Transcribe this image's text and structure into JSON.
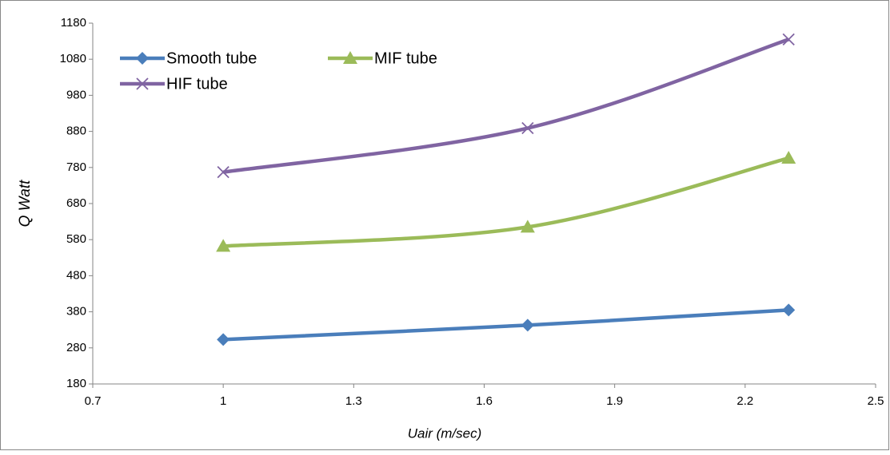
{
  "chart_data": {
    "type": "line",
    "x_label": "Uair  (m/sec)",
    "y_label": "Q  Watt",
    "x": [
      1,
      1.7,
      2.3
    ],
    "series": [
      {
        "name": "Smooth tube",
        "color": "#4a7ebb",
        "marker": "diamond",
        "values": [
          303,
          343,
          385
        ]
      },
      {
        "name": "MIF tube",
        "color": "#9bbb59",
        "marker": "triangle",
        "values": [
          562,
          615,
          806
        ]
      },
      {
        "name": "HIF tube",
        "color": "#8064a2",
        "marker": "x",
        "values": [
          767,
          889,
          1135
        ]
      }
    ],
    "xlim": [
      0.7,
      2.5
    ],
    "xticks": [
      0.7,
      1,
      1.3,
      1.6,
      1.9,
      2.2,
      2.5
    ],
    "ylim": [
      180,
      1180
    ],
    "yticks": [
      180,
      280,
      380,
      480,
      580,
      680,
      780,
      880,
      980,
      1080,
      1180
    ],
    "smooth": true,
    "grid": false,
    "legend": "upper left"
  }
}
